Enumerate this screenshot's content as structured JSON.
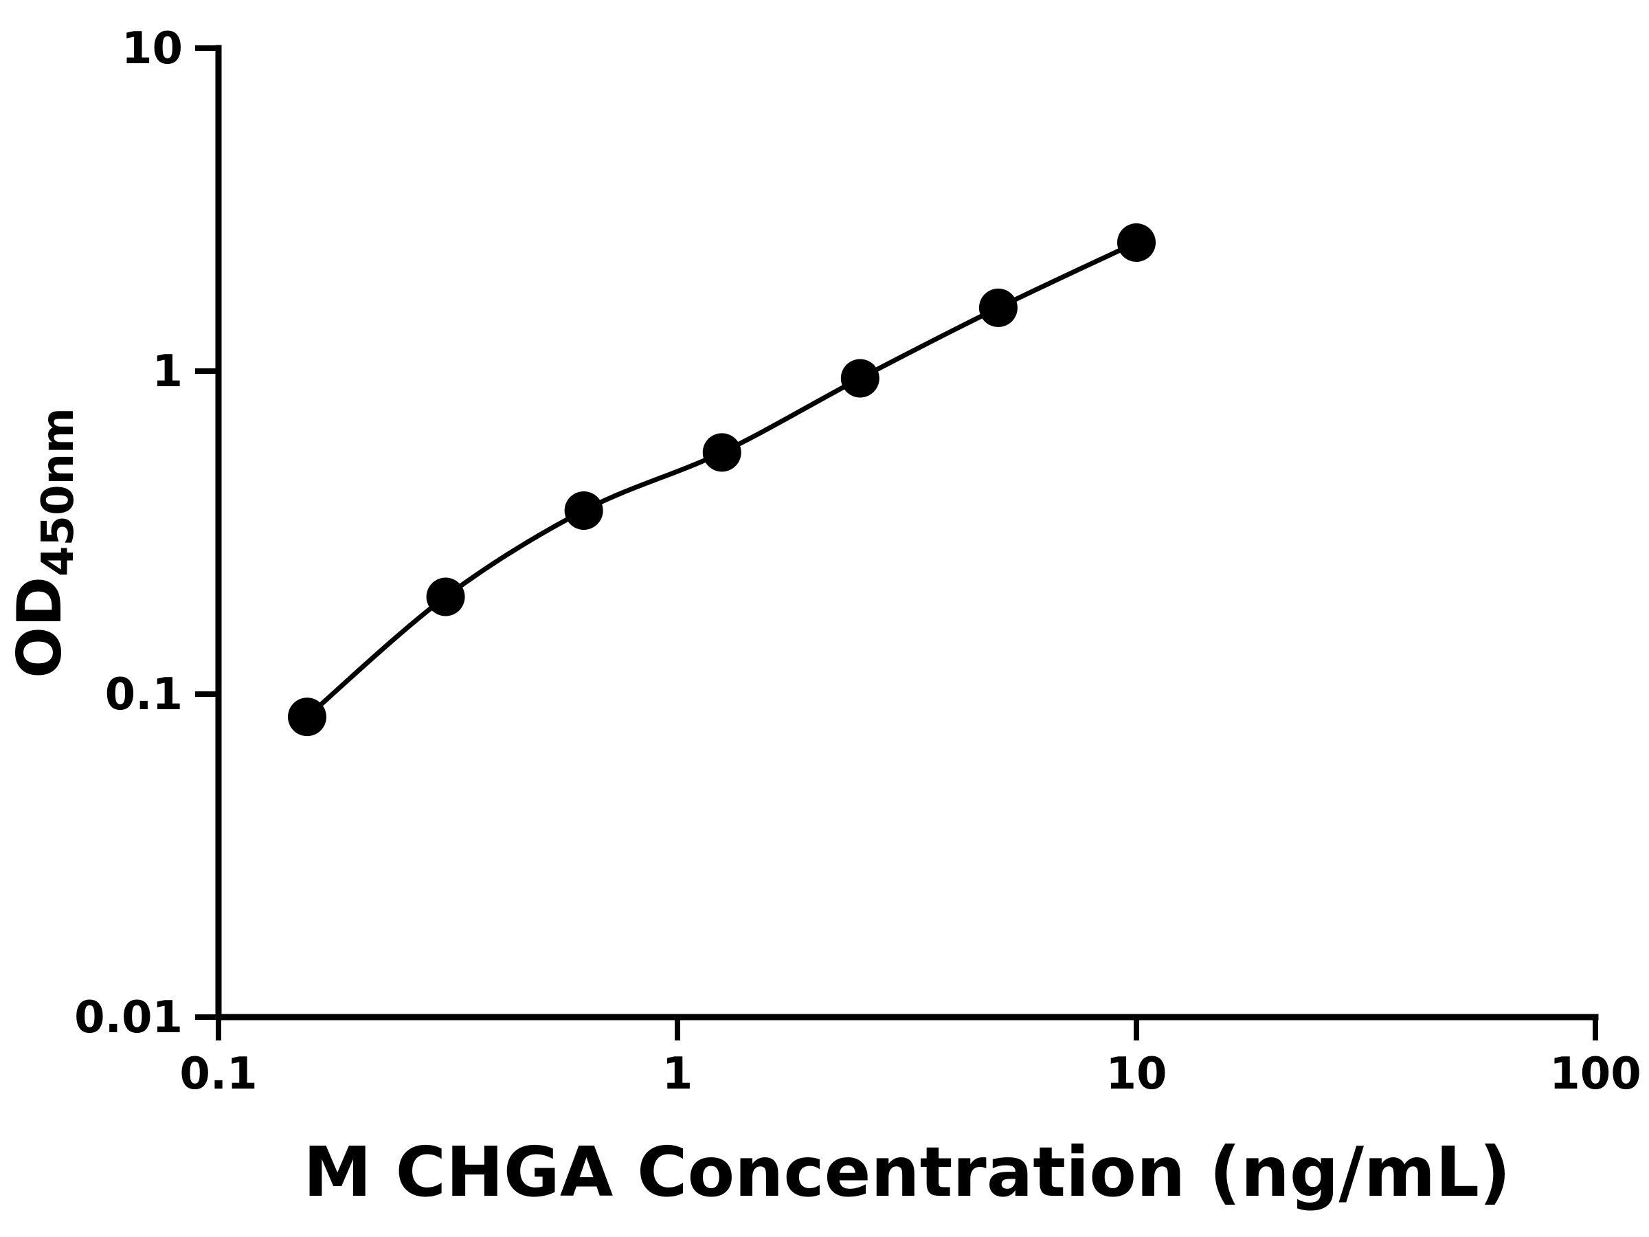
{
  "chart_data": {
    "type": "scatter",
    "xlabel": "M CHGA Concentration (ng/mL)",
    "ylabel": "OD",
    "ylabel_subscript": "450nm",
    "x": [
      0.156,
      0.3125,
      0.625,
      1.25,
      2.5,
      5,
      10
    ],
    "y": [
      0.085,
      0.2,
      0.37,
      0.56,
      0.95,
      1.57,
      2.5
    ],
    "x_scale": "log",
    "y_scale": "log",
    "xlim": [
      0.1,
      100
    ],
    "ylim": [
      0.01,
      10
    ],
    "x_tick_values": [
      0.1,
      1,
      10,
      100
    ],
    "x_tick_labels": [
      "0.1",
      "1",
      "10",
      "100"
    ],
    "y_tick_values": [
      0.01,
      0.1,
      1,
      10
    ],
    "y_tick_labels": [
      "0.01",
      "0.1",
      "1",
      "10"
    ],
    "grid": false,
    "legend": "none",
    "line_style": "smooth-fit-through-points",
    "marker": "filled-circle",
    "marker_color": "#000000",
    "line_color": "#000000",
    "axis_color": "#000000",
    "background_color": "#ffffff"
  }
}
